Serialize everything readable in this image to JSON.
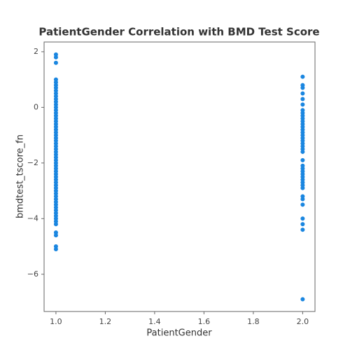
{
  "chart_data": {
    "type": "scatter",
    "title": "PatientGender Correlation with BMD Test Score",
    "xlabel": "PatientGender",
    "ylabel": "bmdtest_tscore_fn",
    "color": "#1a86e0",
    "x": [
      1,
      1,
      1,
      1,
      1,
      1,
      1,
      1,
      1,
      1,
      1,
      1,
      1,
      1,
      1,
      1,
      1,
      1,
      1,
      1,
      1,
      1,
      1,
      1,
      1,
      1,
      1,
      1,
      1,
      1,
      1,
      1,
      1,
      1,
      1,
      1,
      1,
      1,
      1,
      1,
      1,
      1,
      1,
      1,
      1,
      1,
      1,
      1,
      1,
      1,
      1,
      1,
      1,
      1,
      1,
      1,
      1,
      1,
      1,
      1,
      2,
      2,
      2,
      2,
      2,
      2,
      2,
      2,
      2,
      2,
      2,
      2,
      2,
      2,
      2,
      2,
      2,
      2,
      2,
      2,
      2,
      2,
      2,
      2,
      2,
      2,
      2,
      2,
      2,
      2,
      2,
      2,
      2,
      2,
      2,
      2,
      2,
      2,
      2
    ],
    "values": [
      1.9,
      1.8,
      1.6,
      1.0,
      0.9,
      0.8,
      0.7,
      0.6,
      0.5,
      0.4,
      0.3,
      0.2,
      0.1,
      0,
      -0.1,
      -0.2,
      -0.3,
      -0.4,
      -0.5,
      -0.6,
      -0.7,
      -0.8,
      -0.9,
      -1.0,
      -1.1,
      -1.2,
      -1.3,
      -1.4,
      -1.5,
      -1.6,
      -1.7,
      -1.8,
      -1.9,
      -2.0,
      -2.1,
      -2.2,
      -2.3,
      -2.4,
      -2.5,
      -2.6,
      -2.7,
      -2.8,
      -2.9,
      -3.0,
      -3.1,
      -3.2,
      -3.3,
      -3.4,
      -3.5,
      -3.6,
      -3.7,
      -3.8,
      -3.9,
      -4.0,
      -4.1,
      -4.2,
      -4.5,
      -4.6,
      -5.0,
      -5.1,
      1.1,
      0.8,
      0.7,
      0.5,
      0.3,
      0.1,
      -0.1,
      -0.2,
      -0.3,
      -0.4,
      -0.5,
      -0.6,
      -0.7,
      -0.8,
      -0.9,
      -1.0,
      -1.1,
      -1.2,
      -1.3,
      -1.4,
      -1.5,
      -1.6,
      -1.9,
      -2.1,
      -2.2,
      -2.3,
      -2.4,
      -2.5,
      -2.6,
      -2.7,
      -2.8,
      -2.9,
      -3.2,
      -3.3,
      -3.5,
      -4.0,
      -4.2,
      -4.4,
      -6.9
    ],
    "xlim": [
      0.952,
      2.05
    ],
    "xticks": [
      {
        "value": 1,
        "label": "1.0"
      },
      {
        "value": 1.2,
        "label": "1.2"
      },
      {
        "value": 1.4,
        "label": "1.4"
      },
      {
        "value": 1.6,
        "label": "1.6"
      },
      {
        "value": 1.8,
        "label": "1.8"
      },
      {
        "value": 2,
        "label": "2.0"
      }
    ],
    "ylim": [
      -7.34,
      2.35
    ],
    "yticks": [
      {
        "value": -6,
        "label": "−6"
      },
      {
        "value": -4,
        "label": "−4"
      },
      {
        "value": -2,
        "label": "−2"
      },
      0,
      2
    ]
  }
}
